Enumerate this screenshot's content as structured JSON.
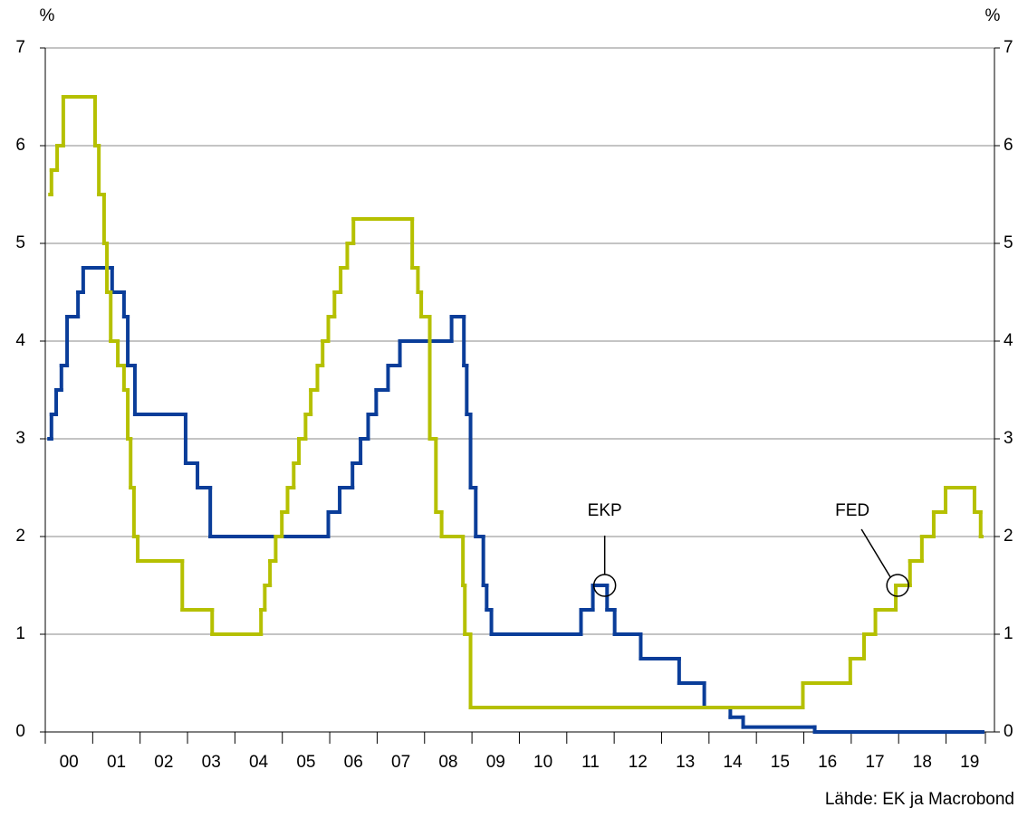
{
  "chart_data": {
    "type": "step-line",
    "y_unit_left": "%",
    "y_unit_right": "%",
    "source": "Lähde: EK ja Macrobond",
    "xlim": [
      2000,
      2019.83
    ],
    "xticks": [
      {
        "value": 2000,
        "label": "00"
      },
      {
        "value": 2001,
        "label": "01"
      },
      {
        "value": 2002,
        "label": "02"
      },
      {
        "value": 2003,
        "label": "03"
      },
      {
        "value": 2004,
        "label": "04"
      },
      {
        "value": 2005,
        "label": "05"
      },
      {
        "value": 2006,
        "label": "06"
      },
      {
        "value": 2007,
        "label": "07"
      },
      {
        "value": 2008,
        "label": "08"
      },
      {
        "value": 2009,
        "label": "09"
      },
      {
        "value": 2010,
        "label": "10"
      },
      {
        "value": 2011,
        "label": "11"
      },
      {
        "value": 2012,
        "label": "12"
      },
      {
        "value": 2013,
        "label": "13"
      },
      {
        "value": 2014,
        "label": "14"
      },
      {
        "value": 2015,
        "label": "15"
      },
      {
        "value": 2016,
        "label": "16"
      },
      {
        "value": 2017,
        "label": "17"
      },
      {
        "value": 2018,
        "label": "18"
      },
      {
        "value": 2019,
        "label": "19"
      }
    ],
    "ylim": [
      0,
      7
    ],
    "yticks": [
      0,
      1,
      2,
      3,
      4,
      5,
      6,
      7
    ],
    "y2lim": [
      0,
      7
    ],
    "y2ticks": [
      0,
      1,
      2,
      3,
      4,
      5,
      6,
      7
    ],
    "grid": true,
    "series": [
      {
        "color": "#0a3d99",
        "x": [
          2000.08,
          2000.13,
          2000.23,
          2000.34,
          2000.46,
          2000.69,
          2000.8,
          2001.41,
          2001.66,
          2001.74,
          2001.89,
          2002.96,
          2003.21,
          2003.48,
          2005.97,
          2006.21,
          2006.48,
          2006.65,
          2006.81,
          2006.98,
          2007.23,
          2007.48,
          2008.57,
          2008.83,
          2008.89,
          2008.97,
          2009.08,
          2009.24,
          2009.31,
          2009.41,
          2011.3,
          2011.55,
          2011.85,
          2012.01,
          2012.56,
          2013.37,
          2013.9,
          2014.45,
          2014.72,
          2016.23,
          2019.77
        ],
        "values": [
          3,
          3.25,
          3.5,
          3.75,
          4.25,
          4.5,
          4.75,
          4.5,
          4.25,
          3.75,
          3.25,
          2.75,
          2.5,
          2,
          2.25,
          2.5,
          2.75,
          3,
          3.25,
          3.5,
          3.75,
          4,
          4.25,
          3.75,
          3.25,
          2.5,
          2,
          1.5,
          1.25,
          1,
          1.25,
          1.5,
          1.25,
          1,
          0.75,
          0.5,
          0.25,
          0.15,
          0.05,
          0,
          0
        ]
      },
      {
        "color": "#b5c000",
        "x": [
          2000.1,
          2000.13,
          2000.25,
          2000.38,
          2001.05,
          2001.13,
          2001.24,
          2001.3,
          2001.38,
          2001.53,
          2001.66,
          2001.74,
          2001.8,
          2001.87,
          2001.95,
          2002.89,
          2003.52,
          2004.55,
          2004.63,
          2004.74,
          2004.86,
          2004.99,
          2005.11,
          2005.24,
          2005.35,
          2005.49,
          2005.6,
          2005.74,
          2005.85,
          2005.97,
          2006.1,
          2006.23,
          2006.37,
          2006.5,
          2007.74,
          2007.86,
          2007.93,
          2008.11,
          2008.24,
          2008.36,
          2008.81,
          2008.85,
          2008.97,
          2015.98,
          2016.98,
          2017.27,
          2017.51,
          2017.94,
          2018.24,
          2018.49,
          2018.74,
          2018.99,
          2019.6,
          2019.73,
          2019.75
        ],
        "values": [
          5.5,
          5.75,
          6,
          6.5,
          6,
          5.5,
          5,
          4.5,
          4,
          3.75,
          3.5,
          3,
          2.5,
          2,
          1.75,
          1.25,
          1,
          1.25,
          1.5,
          1.75,
          2,
          2.25,
          2.5,
          2.75,
          3,
          3.25,
          3.5,
          3.75,
          4,
          4.25,
          4.5,
          4.75,
          5,
          5.25,
          4.75,
          4.5,
          4.25,
          3,
          2.25,
          2,
          1.5,
          1,
          0.25,
          0.5,
          0.75,
          1,
          1.25,
          1.5,
          1.75,
          2,
          2.25,
          2.5,
          2.25,
          2,
          2
        ]
      }
    ],
    "annotations": [
      {
        "text": "EKP",
        "x": 2011.8,
        "y": 1.5
      },
      {
        "text": "FED",
        "x": 2017.98,
        "y": 1.5
      }
    ]
  }
}
